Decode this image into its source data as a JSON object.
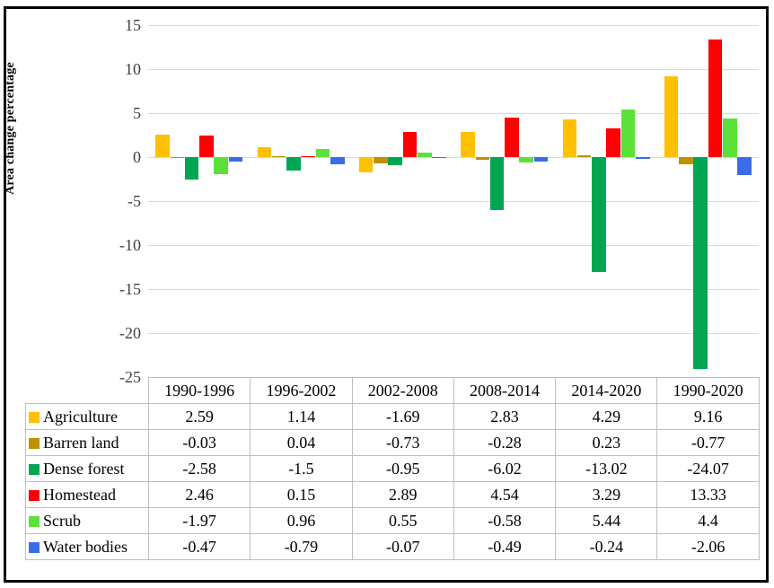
{
  "chart_data": {
    "type": "bar",
    "title": "",
    "xlabel": "",
    "ylabel": "Area change percentage",
    "ylim": [
      -25,
      15
    ],
    "yticks": [
      15,
      10,
      5,
      0,
      -5,
      -10,
      -15,
      -20,
      -25
    ],
    "grid": true,
    "legend_position": "table-rows-left",
    "categories": [
      "1990-1996",
      "1996-2002",
      "2002-2008",
      "2008-2014",
      "2014-2020",
      "1990-2020"
    ],
    "series": [
      {
        "name": "Agriculture",
        "color": "#FFC000",
        "values": [
          2.59,
          1.14,
          -1.69,
          2.83,
          4.29,
          9.16
        ]
      },
      {
        "name": "Barren land",
        "color": "#BF9000",
        "values": [
          -0.03,
          0.04,
          -0.73,
          -0.28,
          0.23,
          -0.77
        ]
      },
      {
        "name": "Dense forest",
        "color": "#00A651",
        "values": [
          -2.58,
          -1.5,
          -0.95,
          -6.02,
          -13.02,
          -24.07
        ]
      },
      {
        "name": "Homestead",
        "color": "#FF0000",
        "values": [
          2.46,
          0.15,
          2.89,
          4.54,
          3.29,
          13.33
        ]
      },
      {
        "name": "Scrub",
        "color": "#5CE13A",
        "values": [
          -1.97,
          0.96,
          0.55,
          -0.58,
          5.44,
          4.4
        ]
      },
      {
        "name": "Water bodies",
        "color": "#3B6CE8",
        "values": [
          -0.47,
          -0.79,
          -0.07,
          -0.49,
          -0.24,
          -2.06
        ]
      }
    ]
  },
  "style_colors": {
    "gridline": "#d9d9d9",
    "table_border": "#bfbfbf",
    "frame_border": "#000000"
  }
}
